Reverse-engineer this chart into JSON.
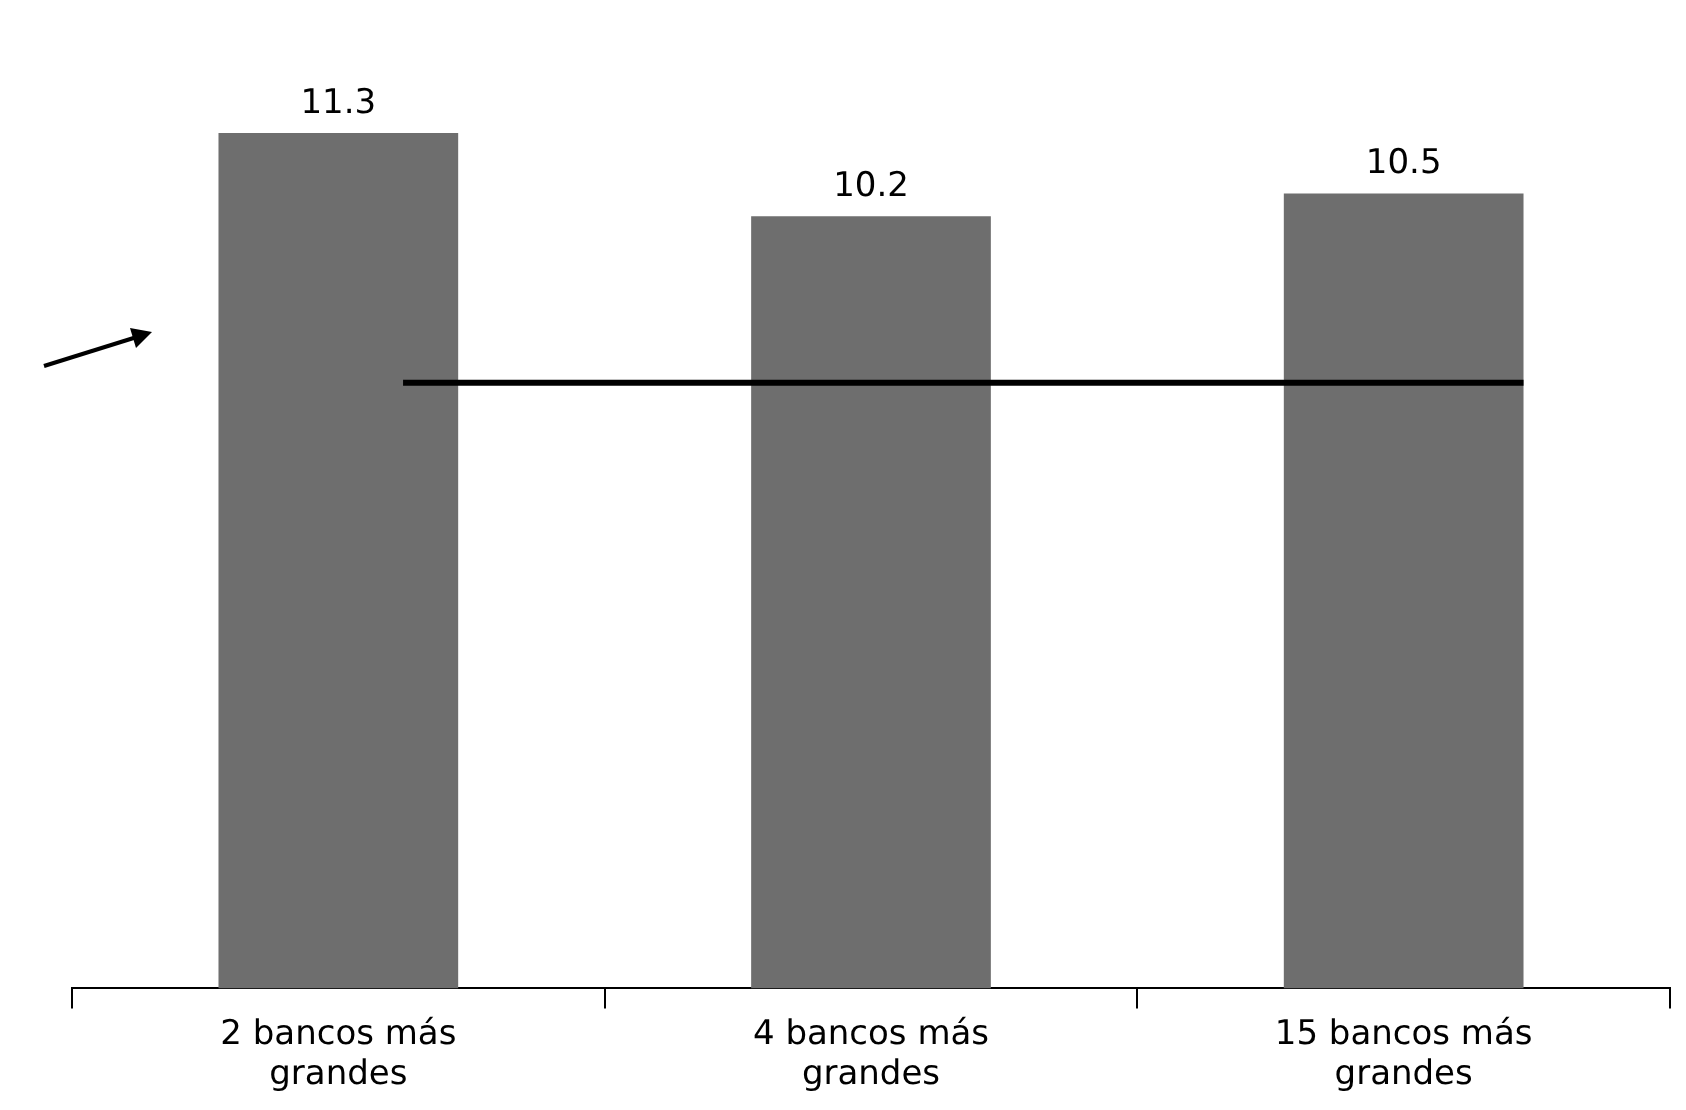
{
  "chart_data": {
    "type": "bar",
    "categories": [
      "2 bancos más grandes",
      "4 bancos más grandes",
      "15 bancos más grandes"
    ],
    "values": [
      11.3,
      10.2,
      10.5
    ],
    "color": "#6e6e6e",
    "data_labels": true,
    "grid": false,
    "legend": false,
    "ref_lines": [
      {
        "axis": "y",
        "value": 8,
        "color": "#000000"
      }
    ]
  }
}
